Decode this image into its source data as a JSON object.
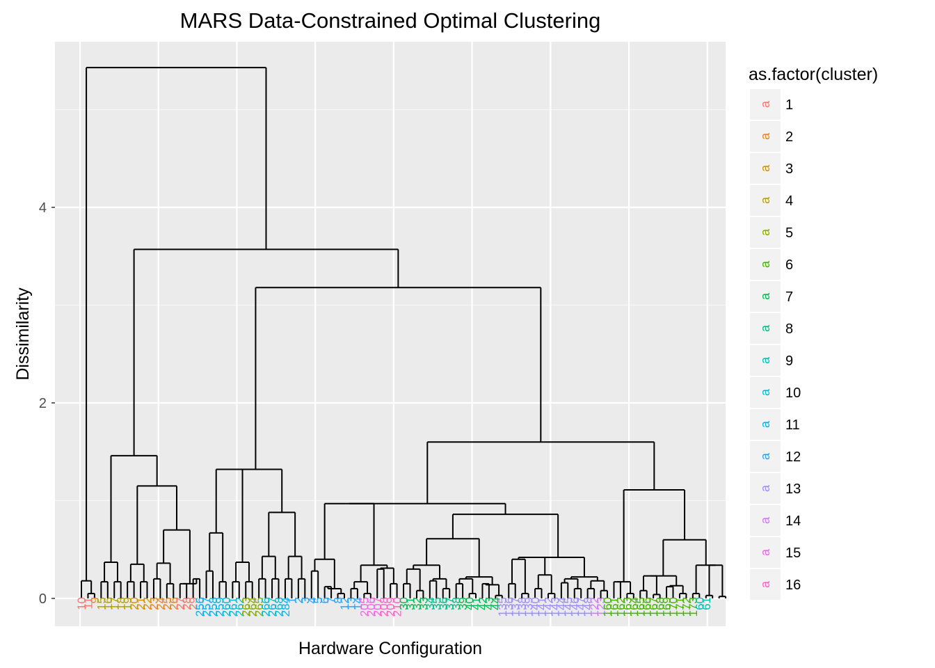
{
  "chart_data": {
    "type": "dendrogram",
    "title": "MARS Data-Constrained Optimal Clustering",
    "xlabel": "Hardware Configuration",
    "ylabel": "Dissimilarity",
    "ylim": [
      -0.27,
      5.7
    ],
    "y_ticks": [
      0,
      2,
      4
    ],
    "grid": true,
    "legend": {
      "title": "as.factor(cluster)",
      "position": "right",
      "key_glyph": "a",
      "entries": [
        "1",
        "2",
        "3",
        "4",
        "5",
        "6",
        "7",
        "8",
        "9",
        "10",
        "11",
        "12",
        "13",
        "14",
        "15",
        "16"
      ],
      "colors": [
        "#F8766D",
        "#E7851E",
        "#D09400",
        "#B2A100",
        "#89AC00",
        "#45B500",
        "#00BC51",
        "#00C087",
        "#00C0B2",
        "#00BCD6",
        "#00B3F2",
        "#29A3FF",
        "#9C8DFF",
        "#D277FF",
        "#F166E8",
        "#FF61C7"
      ]
    },
    "root_height": 5.43,
    "main_merge_heights": [
      5.43,
      3.57,
      3.18,
      1.6,
      1.46,
      1.32,
      1.15,
      1.11,
      0.97,
      0.88,
      0.7,
      0.67,
      0.6,
      0.43,
      0.42,
      0.4,
      0.35,
      0.34
    ],
    "leaves": [
      {
        "label": "10",
        "cluster": 1
      },
      {
        "label": "11",
        "cluster": 1
      },
      {
        "label": "9",
        "cluster": 2
      },
      {
        "label": "15",
        "cluster": 4
      },
      {
        "label": "16",
        "cluster": 4
      },
      {
        "label": "17",
        "cluster": 4
      },
      {
        "label": "18",
        "cluster": 4
      },
      {
        "label": "19",
        "cluster": 4
      },
      {
        "label": "20",
        "cluster": 3
      },
      {
        "label": "21",
        "cluster": 3
      },
      {
        "label": "22",
        "cluster": 3
      },
      {
        "label": "23",
        "cluster": 2
      },
      {
        "label": "24",
        "cluster": 2
      },
      {
        "label": "25",
        "cluster": 2
      },
      {
        "label": "26",
        "cluster": 2
      },
      {
        "label": "27",
        "cluster": 1
      },
      {
        "label": "28",
        "cluster": 1
      },
      {
        "label": "29",
        "cluster": 1
      },
      {
        "label": "256",
        "cluster": 11
      },
      {
        "label": "257",
        "cluster": 11
      },
      {
        "label": "258",
        "cluster": 11
      },
      {
        "label": "259",
        "cluster": 11
      },
      {
        "label": "260",
        "cluster": 10
      },
      {
        "label": "261",
        "cluster": 10
      },
      {
        "label": "262",
        "cluster": 10
      },
      {
        "label": "263",
        "cluster": 5
      },
      {
        "label": "264",
        "cluster": 5
      },
      {
        "label": "265",
        "cluster": 5
      },
      {
        "label": "266",
        "cluster": 10
      },
      {
        "label": "267",
        "cluster": 10
      },
      {
        "label": "268",
        "cluster": 10
      },
      {
        "label": "284",
        "cluster": 11
      },
      {
        "label": "1",
        "cluster": 12
      },
      {
        "label": "2",
        "cluster": 12
      },
      {
        "label": "3",
        "cluster": 12
      },
      {
        "label": "4",
        "cluster": 12
      },
      {
        "label": "5",
        "cluster": 12
      },
      {
        "label": "6",
        "cluster": 12
      },
      {
        "label": "7",
        "cluster": 12
      },
      {
        "label": "8",
        "cluster": 12
      },
      {
        "label": "12",
        "cluster": 12
      },
      {
        "label": "13",
        "cluster": 12
      },
      {
        "label": "14",
        "cluster": 12
      },
      {
        "label": "205",
        "cluster": 15
      },
      {
        "label": "206",
        "cluster": 15
      },
      {
        "label": "207",
        "cluster": 15
      },
      {
        "label": "208",
        "cluster": 16
      },
      {
        "label": "209",
        "cluster": 16
      },
      {
        "label": "210",
        "cluster": 16
      },
      {
        "label": "30",
        "cluster": 7
      },
      {
        "label": "31",
        "cluster": 7
      },
      {
        "label": "32",
        "cluster": 7
      },
      {
        "label": "33",
        "cluster": 7
      },
      {
        "label": "34",
        "cluster": 8
      },
      {
        "label": "35",
        "cluster": 8
      },
      {
        "label": "36",
        "cluster": 8
      },
      {
        "label": "37",
        "cluster": 8
      },
      {
        "label": "38",
        "cluster": 8
      },
      {
        "label": "39",
        "cluster": 7
      },
      {
        "label": "40",
        "cluster": 7
      },
      {
        "label": "41",
        "cluster": 7
      },
      {
        "label": "42",
        "cluster": 7
      },
      {
        "label": "43",
        "cluster": 7
      },
      {
        "label": "44",
        "cluster": 7
      },
      {
        "label": "135",
        "cluster": 13
      },
      {
        "label": "136",
        "cluster": 13
      },
      {
        "label": "137",
        "cluster": 13
      },
      {
        "label": "138",
        "cluster": 13
      },
      {
        "label": "139",
        "cluster": 13
      },
      {
        "label": "140",
        "cluster": 13
      },
      {
        "label": "141",
        "cluster": 13
      },
      {
        "label": "142",
        "cluster": 13
      },
      {
        "label": "143",
        "cluster": 13
      },
      {
        "label": "144",
        "cluster": 13
      },
      {
        "label": "145",
        "cluster": 13
      },
      {
        "label": "146",
        "cluster": 13
      },
      {
        "label": "147",
        "cluster": 13
      },
      {
        "label": "148",
        "cluster": 13
      },
      {
        "label": "122",
        "cluster": 14
      },
      {
        "label": "123",
        "cluster": 14
      },
      {
        "label": "160",
        "cluster": 6
      },
      {
        "label": "161",
        "cluster": 6
      },
      {
        "label": "162",
        "cluster": 6
      },
      {
        "label": "163",
        "cluster": 6
      },
      {
        "label": "164",
        "cluster": 6
      },
      {
        "label": "165",
        "cluster": 6
      },
      {
        "label": "166",
        "cluster": 6
      },
      {
        "label": "167",
        "cluster": 6
      },
      {
        "label": "168",
        "cluster": 6
      },
      {
        "label": "169",
        "cluster": 6
      },
      {
        "label": "170",
        "cluster": 6
      },
      {
        "label": "171",
        "cluster": 6
      },
      {
        "label": "172",
        "cluster": 6
      },
      {
        "label": "173",
        "cluster": 6
      },
      {
        "label": "60",
        "cluster": 9
      },
      {
        "label": "61",
        "cluster": 9
      }
    ]
  }
}
